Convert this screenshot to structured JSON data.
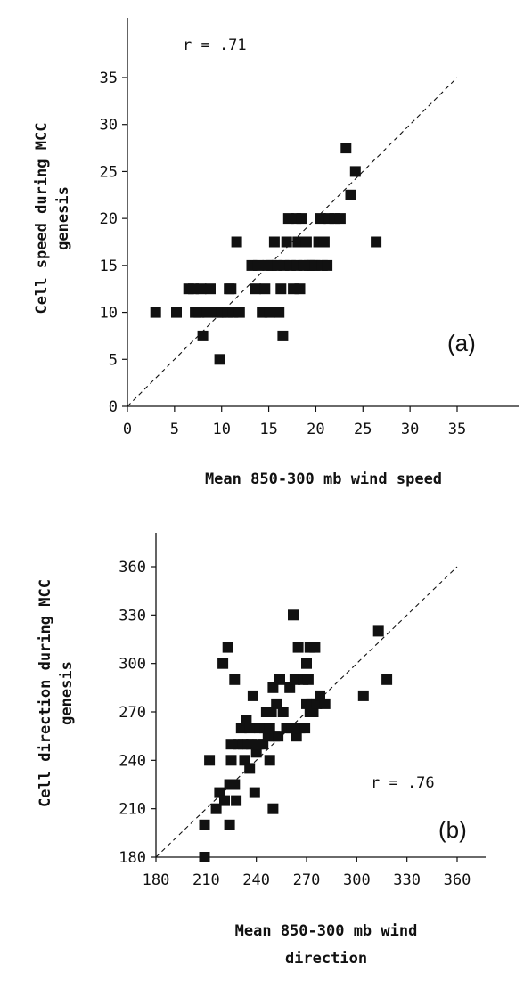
{
  "chart_data": [
    {
      "type": "scatter",
      "panel_label": "(a)",
      "annotation": "r = .71",
      "xlabel": "Mean 850-300 mb wind speed",
      "ylabel_lines": [
        "Cell speed during MCC",
        "genesis"
      ],
      "xlim": [
        0,
        35
      ],
      "ylim": [
        0,
        35
      ],
      "xticks": [
        0,
        5,
        10,
        15,
        20,
        25,
        30,
        35
      ],
      "yticks": [
        0,
        5,
        10,
        15,
        20,
        25,
        30,
        35
      ],
      "reference_line": "1:1",
      "grid": false,
      "marker_color": "#111111",
      "points": [
        [
          3,
          10
        ],
        [
          5.2,
          10
        ],
        [
          6.5,
          12.5
        ],
        [
          7,
          12.5
        ],
        [
          7.2,
          10
        ],
        [
          7.6,
          10
        ],
        [
          7.8,
          12.5
        ],
        [
          8,
          7.5
        ],
        [
          8.5,
          10
        ],
        [
          8.8,
          12.5
        ],
        [
          9.6,
          10
        ],
        [
          9.8,
          5
        ],
        [
          10,
          10
        ],
        [
          10.6,
          10
        ],
        [
          10.8,
          12.5
        ],
        [
          11,
          12.5
        ],
        [
          11.2,
          10
        ],
        [
          11.6,
          17.5
        ],
        [
          11.9,
          10
        ],
        [
          13.2,
          15
        ],
        [
          13.6,
          12.5
        ],
        [
          13.9,
          15
        ],
        [
          14.3,
          10
        ],
        [
          14.6,
          12.5
        ],
        [
          14.9,
          15
        ],
        [
          15.1,
          10
        ],
        [
          15.3,
          15
        ],
        [
          15.6,
          17.5
        ],
        [
          15.9,
          15
        ],
        [
          16.1,
          10
        ],
        [
          16.3,
          12.5
        ],
        [
          16.5,
          7.5
        ],
        [
          16.6,
          15
        ],
        [
          16.9,
          17.5
        ],
        [
          17.1,
          20
        ],
        [
          17.3,
          15
        ],
        [
          17.6,
          12.5
        ],
        [
          17.9,
          20
        ],
        [
          18,
          15
        ],
        [
          18.1,
          17.5
        ],
        [
          18.3,
          12.5
        ],
        [
          18.5,
          20
        ],
        [
          18.7,
          15
        ],
        [
          19,
          17.5
        ],
        [
          19.3,
          15
        ],
        [
          19.6,
          15
        ],
        [
          19.9,
          15
        ],
        [
          20.3,
          17.5
        ],
        [
          20.5,
          20
        ],
        [
          20.7,
          15
        ],
        [
          20.9,
          17.5
        ],
        [
          21.2,
          15
        ],
        [
          21.4,
          20
        ],
        [
          22,
          20
        ],
        [
          22.6,
          20
        ],
        [
          23.2,
          27.5
        ],
        [
          23.7,
          22.5
        ],
        [
          24.2,
          25
        ],
        [
          26.4,
          17.5
        ]
      ]
    },
    {
      "type": "scatter",
      "panel_label": "(b)",
      "annotation": "r = .76",
      "xlabel_lines": [
        "Mean 850-300 mb wind",
        "direction"
      ],
      "ylabel_lines": [
        "Cell direction during MCC",
        "genesis"
      ],
      "xlim": [
        180,
        360
      ],
      "ylim": [
        180,
        360
      ],
      "xticks": [
        180,
        210,
        240,
        270,
        300,
        330,
        360
      ],
      "yticks": [
        180,
        210,
        240,
        270,
        300,
        330,
        360
      ],
      "reference_line": "1:1",
      "grid": false,
      "marker_color": "#111111",
      "points": [
        [
          209,
          180
        ],
        [
          209,
          200
        ],
        [
          212,
          240
        ],
        [
          216,
          210
        ],
        [
          218,
          220
        ],
        [
          220,
          300
        ],
        [
          221,
          215
        ],
        [
          223,
          310
        ],
        [
          224,
          200
        ],
        [
          224,
          225
        ],
        [
          225,
          240
        ],
        [
          225,
          250
        ],
        [
          227,
          290
        ],
        [
          227,
          225
        ],
        [
          228,
          215
        ],
        [
          229,
          250
        ],
        [
          231,
          260
        ],
        [
          232,
          250
        ],
        [
          233,
          240
        ],
        [
          234,
          265
        ],
        [
          235,
          250
        ],
        [
          236,
          235
        ],
        [
          236,
          260
        ],
        [
          237,
          250
        ],
        [
          238,
          280
        ],
        [
          239,
          220
        ],
        [
          240,
          245
        ],
        [
          241,
          250
        ],
        [
          242,
          260
        ],
        [
          244,
          250
        ],
        [
          245,
          260
        ],
        [
          246,
          270
        ],
        [
          247,
          255
        ],
        [
          248,
          240
        ],
        [
          248,
          260
        ],
        [
          249,
          270
        ],
        [
          250,
          210
        ],
        [
          250,
          285
        ],
        [
          251,
          255
        ],
        [
          252,
          275
        ],
        [
          253,
          255
        ],
        [
          254,
          290
        ],
        [
          256,
          270
        ],
        [
          258,
          260
        ],
        [
          260,
          285
        ],
        [
          261,
          260
        ],
        [
          262,
          330
        ],
        [
          263,
          290
        ],
        [
          264,
          255
        ],
        [
          265,
          310
        ],
        [
          266,
          260
        ],
        [
          268,
          290
        ],
        [
          269,
          260
        ],
        [
          270,
          300
        ],
        [
          270,
          275
        ],
        [
          271,
          290
        ],
        [
          272,
          310
        ],
        [
          272,
          270
        ],
        [
          273,
          275
        ],
        [
          274,
          270
        ],
        [
          275,
          310
        ],
        [
          276,
          275
        ],
        [
          278,
          280
        ],
        [
          281,
          275
        ],
        [
          304,
          280
        ],
        [
          313,
          320
        ],
        [
          318,
          290
        ]
      ]
    }
  ]
}
